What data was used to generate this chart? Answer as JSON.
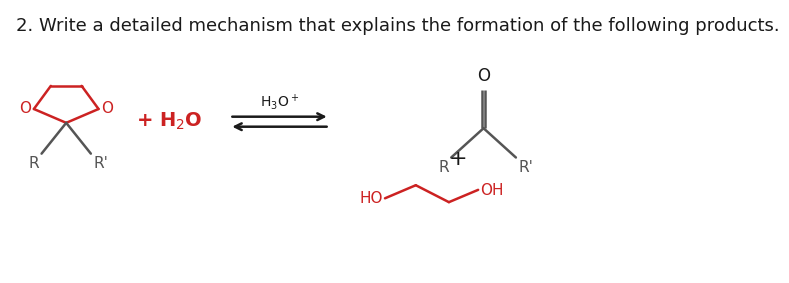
{
  "title": "2. Write a detailed mechanism that explains the formation of the following products.",
  "title_fontsize": 13,
  "title_color": "#1a1a1a",
  "background_color": "#ffffff",
  "red_color": "#cc2222",
  "gray_color": "#555555",
  "black_color": "#1a1a1a"
}
